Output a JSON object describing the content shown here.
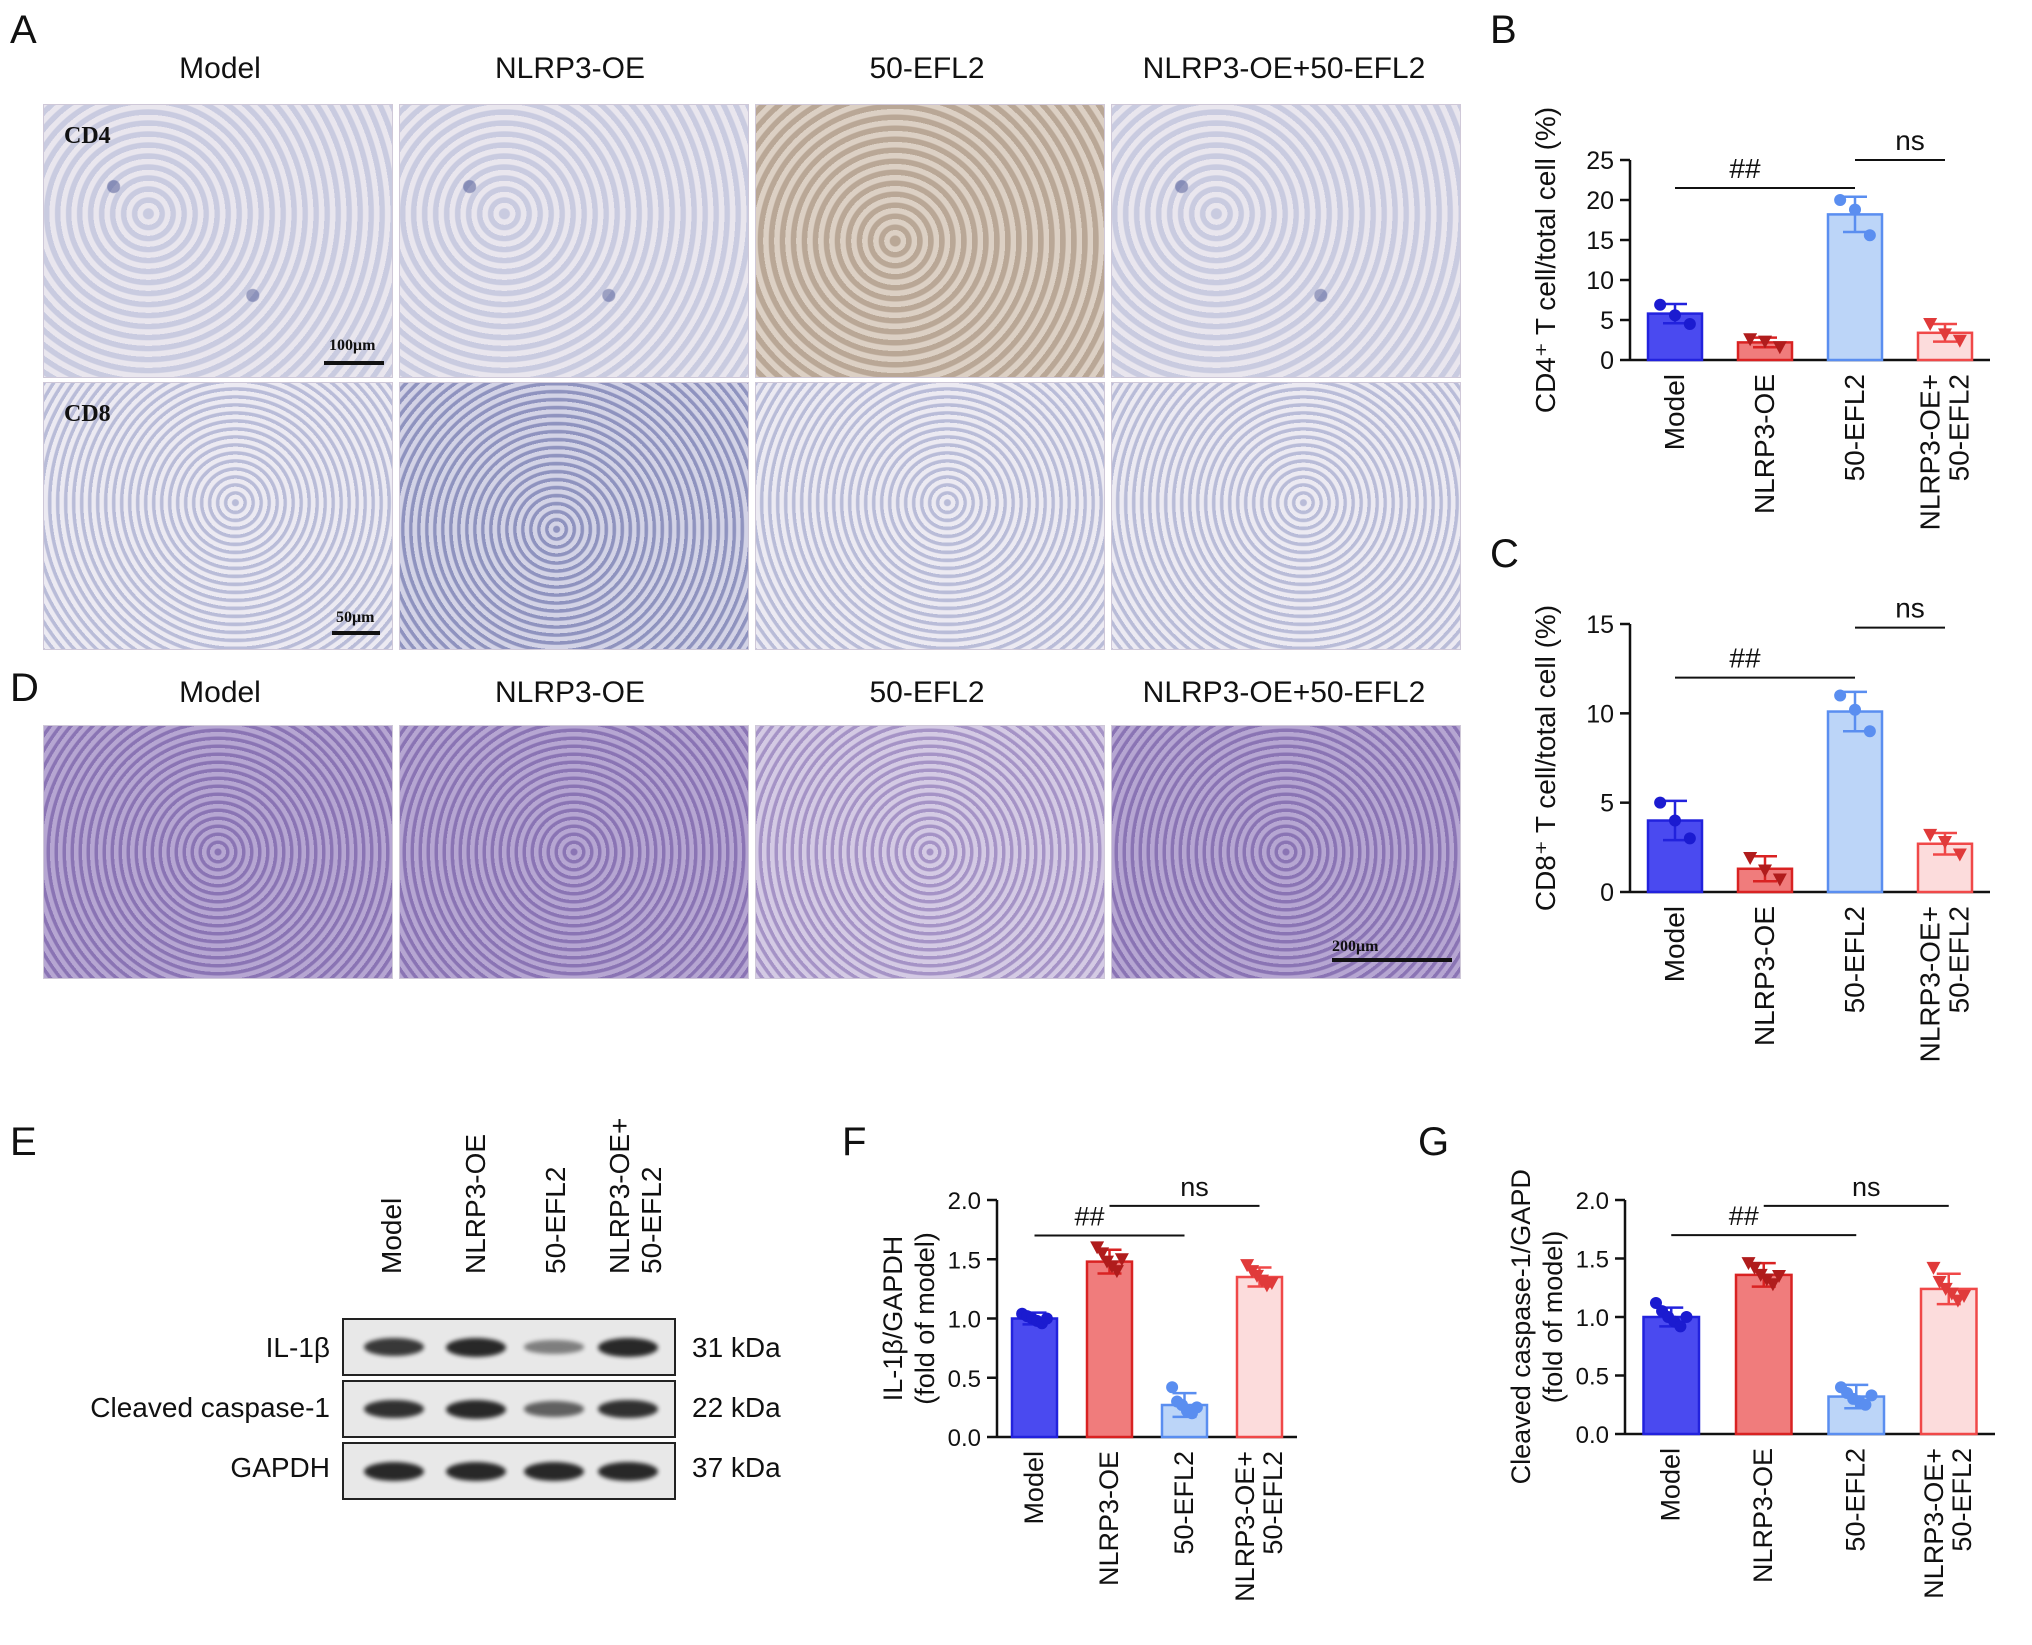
{
  "panel_labels": {
    "A": "A",
    "B": "B",
    "C": "C",
    "D": "D",
    "E": "E",
    "F": "F",
    "G": "G"
  },
  "groups": [
    "Model",
    "NLRP3-OE",
    "50-EFL2",
    "NLRP3-OE+50-EFL2"
  ],
  "panelA": {
    "row_labels": [
      "CD4",
      "CD8"
    ],
    "scale_cd4": "100μm",
    "scale_cd8": "50μm"
  },
  "panelD": {
    "scale": "200μm"
  },
  "panelE": {
    "col_labels": [
      "Model",
      "NLRP3-OE",
      "50-EFL2",
      "NLRP3-OE+",
      "50-EFL2"
    ],
    "rows": [
      {
        "label": "IL-1β",
        "kda": "31 kDa",
        "intensity": [
          0.8,
          0.9,
          0.35,
          0.9
        ]
      },
      {
        "label": "Cleaved caspase-1",
        "kda": "22 kDa",
        "intensity": [
          0.85,
          0.9,
          0.55,
          0.85
        ]
      },
      {
        "label": "GAPDH",
        "kda": "37 kDa",
        "intensity": [
          0.9,
          0.9,
          0.9,
          0.9
        ]
      }
    ]
  },
  "colors": {
    "fill": [
      "#4a4af0",
      "#f07c7c",
      "#bcd5f8",
      "#fcdcdc"
    ],
    "edge": [
      "#2222dd",
      "#d92222",
      "#5a8ef0",
      "#f04848"
    ],
    "dot": [
      "#1b1bd0",
      "#b01c1c",
      "#5a8ef0",
      "#e03a3a"
    ]
  },
  "chart_data": [
    {
      "type": "bar",
      "panel": "B",
      "categories": [
        "Model",
        "NLRP3-OE",
        "50-EFL2",
        "NLRP3-OE+50-EFL2"
      ],
      "category_lines": [
        [
          "Model"
        ],
        [
          "NLRP3-OE"
        ],
        [
          "50-EFL2"
        ],
        [
          "NLRP3-OE+",
          "50-EFL2"
        ]
      ],
      "values": [
        5.8,
        2.2,
        18.2,
        3.4
      ],
      "errors": [
        1.2,
        0.6,
        2.2,
        1.1
      ],
      "points": [
        [
          6.9,
          5.6,
          4.5
        ],
        [
          2.6,
          2.3,
          1.6
        ],
        [
          20.0,
          18.8,
          15.6
        ],
        [
          4.5,
          3.2,
          2.4
        ]
      ],
      "ylabel": "CD4⁺ T cell/total cell (%)",
      "ylim": [
        0,
        25
      ],
      "yticks": [
        0,
        5,
        10,
        15,
        20,
        25
      ],
      "sig": [
        {
          "label": "##",
          "from": 0,
          "to": 2,
          "level": 21.5
        },
        {
          "label": "ns",
          "from": 2,
          "to": 3,
          "level": 25.0
        }
      ]
    },
    {
      "type": "bar",
      "panel": "C",
      "categories": [
        "Model",
        "NLRP3-OE",
        "50-EFL2",
        "NLRP3-OE+50-EFL2"
      ],
      "category_lines": [
        [
          "Model"
        ],
        [
          "NLRP3-OE"
        ],
        [
          "50-EFL2"
        ],
        [
          "NLRP3-OE+",
          "50-EFL2"
        ]
      ],
      "values": [
        4.0,
        1.3,
        10.1,
        2.7
      ],
      "errors": [
        1.1,
        0.7,
        1.1,
        0.6
      ],
      "points": [
        [
          5.0,
          4.0,
          3.0
        ],
        [
          1.9,
          1.2,
          0.7
        ],
        [
          11.0,
          10.2,
          9.0
        ],
        [
          3.2,
          2.8,
          2.1
        ]
      ],
      "ylabel": "CD8⁺ T cell/total cell (%)",
      "ylim": [
        0,
        15
      ],
      "yticks": [
        0,
        5,
        10,
        15
      ],
      "sig": [
        {
          "label": "##",
          "from": 0,
          "to": 2,
          "level": 12.0
        },
        {
          "label": "ns",
          "from": 2,
          "to": 3,
          "level": 14.8
        }
      ]
    },
    {
      "type": "bar",
      "panel": "F",
      "categories": [
        "Model",
        "NLRP3-OE",
        "50-EFL2",
        "NLRP3-OE+50-EFL2"
      ],
      "category_lines": [
        [
          "Model"
        ],
        [
          "NLRP3-OE"
        ],
        [
          "50-EFL2"
        ],
        [
          "NLRP3-OE+",
          "50-EFL2"
        ]
      ],
      "values": [
        1.0,
        1.48,
        0.27,
        1.35
      ],
      "errors": [
        0.05,
        0.1,
        0.1,
        0.08
      ],
      "points": [
        [
          1.04,
          1.02,
          1.0,
          0.98,
          0.96,
          1.0
        ],
        [
          1.6,
          1.55,
          1.48,
          1.44,
          1.4,
          1.5
        ],
        [
          0.42,
          0.3,
          0.27,
          0.22,
          0.2,
          0.25
        ],
        [
          1.45,
          1.4,
          1.36,
          1.32,
          1.28,
          1.3
        ]
      ],
      "ylabel_lines": [
        "IL-1β/GAPDH",
        "(fold of model)"
      ],
      "ylim": [
        0,
        2.0
      ],
      "yticks": [
        0.0,
        0.5,
        1.0,
        1.5,
        2.0
      ],
      "sig": [
        {
          "label": "##",
          "from": 0,
          "to": 2,
          "level": 1.7
        },
        {
          "label": "ns",
          "from": 1,
          "to": 3,
          "level": 1.95
        }
      ]
    },
    {
      "type": "bar",
      "panel": "G",
      "categories": [
        "Model",
        "NLRP3-OE",
        "50-EFL2",
        "NLRP3-OE+50-EFL2"
      ],
      "category_lines": [
        [
          "Model"
        ],
        [
          "NLRP3-OE"
        ],
        [
          "50-EFL2"
        ],
        [
          "NLRP3-OE+",
          "50-EFL2"
        ]
      ],
      "values": [
        1.0,
        1.36,
        0.32,
        1.24
      ],
      "errors": [
        0.08,
        0.1,
        0.1,
        0.13
      ],
      "points": [
        [
          1.12,
          1.05,
          1.0,
          0.96,
          0.92,
          1.0
        ],
        [
          1.46,
          1.42,
          1.36,
          1.32,
          1.28,
          1.35
        ],
        [
          0.4,
          0.35,
          0.3,
          0.28,
          0.25,
          0.33
        ],
        [
          1.42,
          1.3,
          1.24,
          1.2,
          1.14,
          1.18
        ]
      ],
      "ylabel_lines": [
        "Cleaved caspase-1/GAPDH",
        "(fold of model)"
      ],
      "ylim": [
        0,
        2.0
      ],
      "yticks": [
        0.0,
        0.5,
        1.0,
        1.5,
        2.0
      ],
      "sig": [
        {
          "label": "##",
          "from": 0,
          "to": 2,
          "level": 1.7
        },
        {
          "label": "ns",
          "from": 1,
          "to": 3,
          "level": 1.95
        }
      ]
    }
  ]
}
